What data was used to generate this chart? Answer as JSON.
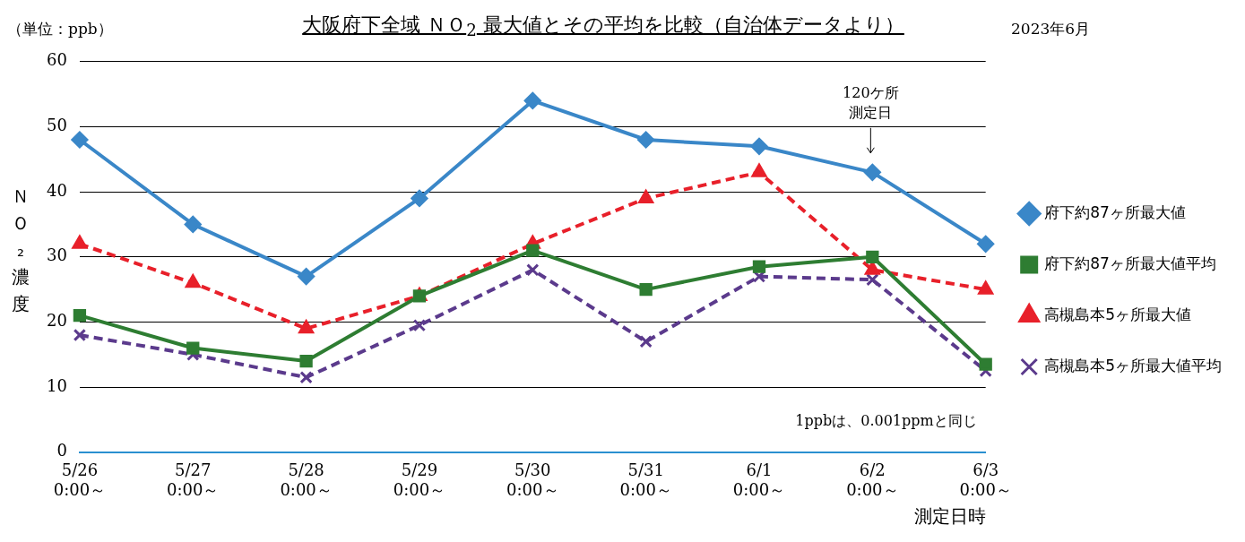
{
  "chart_data": {
    "type": "line",
    "title": "大阪府下全域 ＮＯ$_{2}$ 最大値とその平均を比較（自治体データより）",
    "subtitle": "2023年6月",
    "ylabel": "ＮＯ₂濃度",
    "xlabel": "測定日時",
    "categories": [
      "5/26 0:00～",
      "5/27 0:00～",
      "5/28 0:00～",
      "5/29 0:00～",
      "5/30 0:00～",
      "5/31 0:00～",
      "6/1 0:00～",
      "6/2 0:00～",
      "6/3 0:00～"
    ],
    "series": [
      {
        "name": "府下約87ヶ所最大値",
        "color": "#3a87c8",
        "marker": "diamond",
        "line_style": "solid",
        "values": [
          48,
          35,
          27,
          39,
          54,
          48,
          47,
          43,
          32
        ]
      },
      {
        "name": "府下約87ヶ所最大値平均",
        "color": "#2e7d32",
        "marker": "square",
        "line_style": "solid",
        "values": [
          21,
          16,
          14,
          24,
          31,
          25,
          28.5,
          30,
          13.5
        ]
      },
      {
        "name": "高槻島本5ヶ所最大値",
        "color": "#e8202a",
        "marker": "triangle",
        "line_style": "dashed",
        "values": [
          32,
          26,
          19,
          24,
          32,
          39,
          43,
          28,
          25
        ]
      },
      {
        "name": "高槻島本5ヶ所最大値平均",
        "color": "#5b3a8c",
        "marker": "cross",
        "line_style": "dashed",
        "values": [
          18,
          15,
          11.5,
          19.5,
          28,
          17,
          27,
          26.5,
          12.5
        ]
      }
    ],
    "ylim": [
      0,
      60
    ],
    "yticks": [
      0,
      10,
      20,
      30,
      40,
      50,
      60
    ],
    "grid": "y",
    "legend": "right",
    "annotations": [
      "（単位：ppb）",
      "120ケ所測定日",
      "1ppbは、0.001ppmと同じ"
    ]
  }
}
